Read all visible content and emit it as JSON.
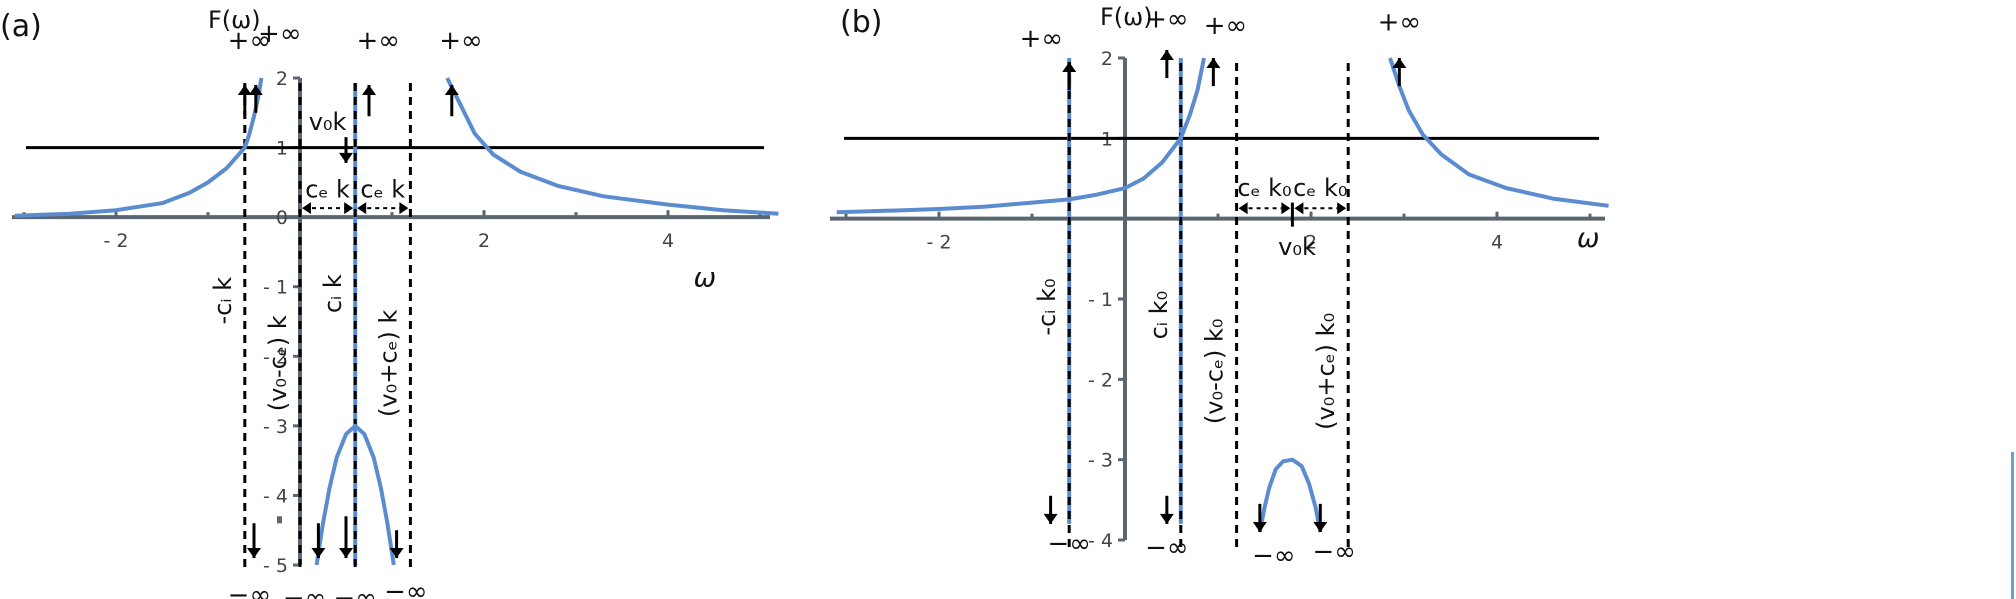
{
  "chart_data": [
    {
      "type": "line",
      "panel_label": "(a)",
      "ylabel": "F(ω)",
      "xlabel": "ω",
      "xlim": [
        -3.1,
        5.2
      ],
      "ylim": [
        -5,
        2
      ],
      "xticks": [
        {
          "v": -2,
          "label": "- 2"
        },
        {
          "v": 2,
          "label": "2"
        },
        {
          "v": 4,
          "label": "4"
        }
      ],
      "yticks": [
        {
          "v": 2,
          "label": "2"
        },
        {
          "v": 1,
          "label": "1"
        },
        {
          "v": 0,
          "label": "0"
        },
        {
          "v": -1,
          "label": "- 1"
        },
        {
          "v": -2,
          "label": "- 2"
        },
        {
          "v": -3,
          "label": "- 3"
        },
        {
          "v": -4,
          "label": "- 4"
        },
        {
          "v": -5,
          "label": "- 5"
        }
      ],
      "grid": false,
      "colors": {
        "curve": "#5b8ccf",
        "axis": "#5a6670",
        "lines": "#000000"
      },
      "reference_line": {
        "y": 1
      },
      "asymptotes": [
        {
          "x": -0.6,
          "label": "-cᵢ k",
          "label_y": -1.2
        },
        {
          "x": 0,
          "label": "(v₀-cₑ) k",
          "label_y": -2.1
        },
        {
          "x": 0.6,
          "label": "cᵢ k",
          "label_y": -1.1
        },
        {
          "x": 1.2,
          "label": "(v₀+cₑ) k",
          "label_y": -2.1
        }
      ],
      "solid_verticals": [
        0.6
      ],
      "curves": [
        {
          "name": "left",
          "points": [
            [
              -3.1,
              0.02
            ],
            [
              -2.5,
              0.05
            ],
            [
              -2,
              0.1
            ],
            [
              -1.5,
              0.2
            ],
            [
              -1.2,
              0.35
            ],
            [
              -1,
              0.5
            ],
            [
              -0.8,
              0.7
            ],
            [
              -0.6,
              1
            ],
            [
              -0.55,
              1.2
            ],
            [
              -0.5,
              1.45
            ],
            [
              -0.45,
              1.75
            ],
            [
              -0.42,
              2
            ]
          ]
        },
        {
          "name": "middle",
          "points": [
            [
              0.18,
              -5
            ],
            [
              0.25,
              -4.4
            ],
            [
              0.32,
              -3.9
            ],
            [
              0.4,
              -3.45
            ],
            [
              0.5,
              -3.12
            ],
            [
              0.6,
              -3
            ],
            [
              0.7,
              -3.12
            ],
            [
              0.8,
              -3.45
            ],
            [
              0.88,
              -3.9
            ],
            [
              0.95,
              -4.4
            ],
            [
              1.02,
              -5
            ]
          ]
        },
        {
          "name": "right",
          "points": [
            [
              1.6,
              2
            ],
            [
              1.75,
              1.6
            ],
            [
              1.9,
              1.2
            ],
            [
              2.1,
              0.9
            ],
            [
              2.4,
              0.65
            ],
            [
              2.8,
              0.45
            ],
            [
              3.3,
              0.3
            ],
            [
              4,
              0.18
            ],
            [
              4.6,
              0.1
            ],
            [
              5.2,
              0.05
            ]
          ]
        }
      ],
      "infinity_labels": [
        {
          "text": "+∞",
          "x": -0.55,
          "y": 2.42
        },
        {
          "text": "+∞",
          "x": -0.22,
          "y": 2.52
        },
        {
          "text": "+∞",
          "x": 0.85,
          "y": 2.42
        },
        {
          "text": "+∞",
          "x": 1.75,
          "y": 2.42
        },
        {
          "text": "−∞",
          "x": -0.55,
          "y": -5.55
        },
        {
          "text": "−∞",
          "x": 0.05,
          "y": -5.6
        },
        {
          "text": "−∞",
          "x": 0.6,
          "y": -5.6
        },
        {
          "text": "−∞",
          "x": 1.15,
          "y": -5.5
        }
      ],
      "arrows": [
        {
          "x": -0.6,
          "dir": "up",
          "y0": 1.45,
          "y1": 1.9
        },
        {
          "x": -0.48,
          "dir": "up",
          "y0": 1.5,
          "y1": 1.9
        },
        {
          "x": 0.75,
          "dir": "up",
          "y0": 1.45,
          "y1": 1.9
        },
        {
          "x": 1.65,
          "dir": "up",
          "y0": 1.45,
          "y1": 1.9
        },
        {
          "x": -0.5,
          "dir": "down",
          "y0": -4.4,
          "y1": -4.9
        },
        {
          "x": 0.2,
          "dir": "down",
          "y0": -4.4,
          "y1": -4.9
        },
        {
          "x": 0.5,
          "dir": "down",
          "y0": -4.3,
          "y1": -4.9
        },
        {
          "x": 1.05,
          "dir": "down",
          "y0": -4.5,
          "y1": -4.9
        }
      ],
      "spans": [
        {
          "x0": 0,
          "x1": 0.6,
          "y": 0.13,
          "label": "cₑ k",
          "label_y": 0.28
        },
        {
          "x0": 0.6,
          "x1": 1.2,
          "y": 0.13,
          "label": "cₑ k",
          "label_y": 0.28
        }
      ],
      "marker_label": {
        "text": "v₀k",
        "x": 0.3,
        "y": 1.25
      },
      "marker_arrow": {
        "x": 0.5,
        "y0": 1.15,
        "y1": 0.78
      },
      "axis_label_pos": {
        "x": 4.4,
        "y": -1.0
      },
      "stray_mark": {
        "x": -0.25,
        "y": -4.3
      }
    },
    {
      "type": "line",
      "panel_label": "(b)",
      "ylabel": "F(ω)",
      "xlabel": "ω",
      "xlim": [
        -3.1,
        5.2
      ],
      "ylim": [
        -4,
        2
      ],
      "xticks": [
        {
          "v": -2,
          "label": "- 2"
        },
        {
          "v": 2,
          "label": "2"
        },
        {
          "v": 4,
          "label": "4"
        }
      ],
      "yticks": [
        {
          "v": 2,
          "label": "2"
        },
        {
          "v": 1,
          "label": "1"
        },
        {
          "v": -1,
          "label": "- 1"
        },
        {
          "v": -2,
          "label": "- 2"
        },
        {
          "v": -3,
          "label": "- 3"
        },
        {
          "v": -4,
          "label": "- 4"
        }
      ],
      "grid": false,
      "colors": {
        "curve": "#5b8ccf",
        "axis": "#5a6670",
        "lines": "#000000"
      },
      "reference_line": {
        "y": 1
      },
      "asymptotes": [
        {
          "x": -0.6,
          "label": "-cᵢ k₀",
          "label_y": -1.1
        },
        {
          "x": 0.6,
          "label": "cᵢ k₀",
          "label_y": -1.2
        },
        {
          "x": 1.2,
          "label": "(v₀-cₑ) k₀",
          "label_y": -1.9
        },
        {
          "x": 2.4,
          "label": "(v₀+cₑ) k₀",
          "label_y": -1.9
        }
      ],
      "solid_verticals": [],
      "curves": [
        {
          "name": "left",
          "points": [
            [
              -3.1,
              0.08
            ],
            [
              -2.5,
              0.1
            ],
            [
              -2,
              0.12
            ],
            [
              -1.5,
              0.15
            ],
            [
              -1,
              0.2
            ],
            [
              -0.6,
              0.24
            ],
            [
              -0.3,
              0.3
            ],
            [
              0,
              0.38
            ],
            [
              0.2,
              0.5
            ],
            [
              0.4,
              0.7
            ],
            [
              0.6,
              1
            ],
            [
              0.7,
              1.3
            ],
            [
              0.78,
              1.6
            ],
            [
              0.85,
              2
            ]
          ]
        },
        {
          "name": "middle",
          "points": [
            [
              1.45,
              -3.9
            ],
            [
              1.5,
              -3.6
            ],
            [
              1.55,
              -3.35
            ],
            [
              1.62,
              -3.12
            ],
            [
              1.7,
              -3.02
            ],
            [
              1.8,
              -3
            ],
            [
              1.9,
              -3.08
            ],
            [
              1.98,
              -3.3
            ],
            [
              2.05,
              -3.6
            ],
            [
              2.1,
              -3.9
            ]
          ]
        },
        {
          "name": "right",
          "points": [
            [
              2.85,
              2
            ],
            [
              2.95,
              1.65
            ],
            [
              3.05,
              1.35
            ],
            [
              3.2,
              1.05
            ],
            [
              3.4,
              0.8
            ],
            [
              3.7,
              0.55
            ],
            [
              4.1,
              0.38
            ],
            [
              4.6,
              0.25
            ],
            [
              5.2,
              0.16
            ]
          ]
        }
      ],
      "infinity_labels": [
        {
          "text": "+∞",
          "x": -0.9,
          "y": 2.14
        },
        {
          "text": "+∞",
          "x": 0.45,
          "y": 2.38
        },
        {
          "text": "+∞",
          "x": 1.08,
          "y": 2.3
        },
        {
          "text": "+∞",
          "x": 2.95,
          "y": 2.34
        },
        {
          "text": "−∞",
          "x": -0.6,
          "y": -4.15
        },
        {
          "text": "−∞",
          "x": 0.45,
          "y": -4.2
        },
        {
          "text": "−∞",
          "x": 1.6,
          "y": -4.3
        },
        {
          "text": "−∞",
          "x": 2.25,
          "y": -4.25
        }
      ],
      "arrows": [
        {
          "x": -0.6,
          "dir": "up",
          "y0": 1.6,
          "y1": 1.95
        },
        {
          "x": 0.45,
          "dir": "up",
          "y0": 1.75,
          "y1": 2.1
        },
        {
          "x": 0.95,
          "dir": "up",
          "y0": 1.65,
          "y1": 2.0
        },
        {
          "x": 2.95,
          "dir": "up",
          "y0": 1.65,
          "y1": 2.0
        },
        {
          "x": -0.8,
          "dir": "down",
          "y0": -3.45,
          "y1": -3.8
        },
        {
          "x": 0.45,
          "dir": "down",
          "y0": -3.45,
          "y1": -3.8
        },
        {
          "x": 1.45,
          "dir": "down",
          "y0": -3.55,
          "y1": -3.9
        },
        {
          "x": 2.1,
          "dir": "down",
          "y0": -3.55,
          "y1": -3.9
        }
      ],
      "spans": [
        {
          "x0": 1.2,
          "x1": 1.8,
          "y": 0.13,
          "label": "cₑ k₀",
          "label_y": 0.28
        },
        {
          "x0": 1.8,
          "x1": 2.4,
          "y": 0.13,
          "label": "cₑ k₀",
          "label_y": 0.28
        }
      ],
      "marker_label": {
        "text": "v₀k",
        "x": 1.85,
        "y": -0.45
      },
      "marker_tick": {
        "x": 1.8,
        "y0": 0.2,
        "y1": -0.1
      },
      "axis_label_pos": {
        "x": 4.98,
        "y": -0.35
      }
    }
  ]
}
